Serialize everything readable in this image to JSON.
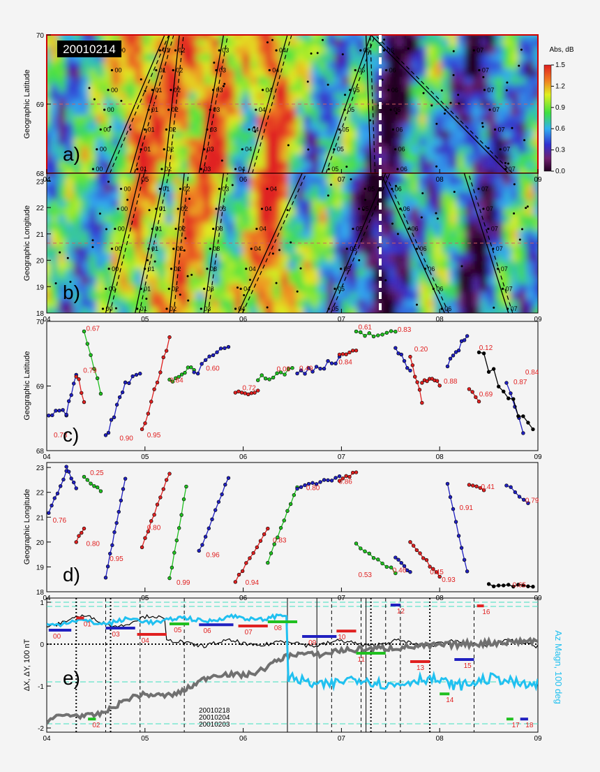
{
  "figure": {
    "date_label": "20010214",
    "colorbar_title": "Abs, dB",
    "colorbar_ticks": [
      "1.5",
      "1.2",
      "0.9",
      "0.6",
      "0.3",
      "0.0"
    ],
    "legend_dates": [
      "20010218",
      "20010204",
      "20010203"
    ],
    "right_axis_label": "Az Magn, 100 deg",
    "colors": {
      "red": "#e02020",
      "blue": "#2020c0",
      "green": "#20c020",
      "cyan": "#20c0f0",
      "gray": "#707070",
      "dashcyan": "#40e0c0"
    }
  },
  "panels": {
    "a": {
      "letter": "a)",
      "ylabel": "Geographic Latitude",
      "yticks": [
        "70",
        "69",
        "68"
      ]
    },
    "b": {
      "letter": "b)",
      "ylabel": "Geographic Longitude",
      "yticks": [
        "23",
        "22",
        "21",
        "20",
        "19",
        "18"
      ]
    },
    "c": {
      "letter": "c)",
      "ylabel": "Geographic Latitude",
      "yticks": [
        "70",
        "69",
        "68"
      ]
    },
    "d": {
      "letter": "d)",
      "ylabel": "Geographic Longitude",
      "yticks": [
        "23",
        "22",
        "21",
        "20",
        "19",
        "18"
      ]
    },
    "e": {
      "letter": "e)",
      "ylabel": "ΔX, ΔY, 100 nT",
      "yticks": [
        "1",
        "0",
        "-1",
        "-2"
      ]
    }
  },
  "chart_data": [
    {
      "type": "heatmap",
      "panel": "a",
      "title": "20010214",
      "xlabel": "",
      "ylabel": "Geographic Latitude",
      "xlim": [
        4,
        9
      ],
      "ylim": [
        68,
        70
      ],
      "xticks": [
        "04",
        "05",
        "06",
        "07",
        "08",
        "09"
      ],
      "value_range": [
        0.0,
        1.5
      ],
      "unit": "Abs, dB",
      "beam_labels": [
        "00",
        "01",
        "02",
        "03",
        "04",
        "05",
        "06",
        "07"
      ]
    },
    {
      "type": "heatmap",
      "panel": "b",
      "xlabel": "",
      "ylabel": "Geographic Longitude",
      "xlim": [
        4,
        9
      ],
      "ylim": [
        18,
        23.3
      ],
      "xticks": [
        "04",
        "05",
        "06",
        "07",
        "08",
        "09"
      ],
      "value_range": [
        0.0,
        1.5
      ],
      "unit": "Abs, dB"
    },
    {
      "type": "scatter",
      "panel": "c",
      "ylabel": "Geographic Latitude",
      "xlim": [
        4,
        9
      ],
      "ylim": [
        68,
        70
      ],
      "xticks": [
        "04",
        "05",
        "06",
        "07",
        "08",
        "09"
      ],
      "annotations": [
        {
          "x": 4.05,
          "y": 68.25,
          "text": "0.73"
        },
        {
          "x": 4.35,
          "y": 69.25,
          "text": "0.79"
        },
        {
          "x": 4.38,
          "y": 69.9,
          "text": "0.67"
        },
        {
          "x": 4.72,
          "y": 68.2,
          "text": "0.90"
        },
        {
          "x": 5.0,
          "y": 68.25,
          "text": "0.95"
        },
        {
          "x": 5.23,
          "y": 69.1,
          "text": "0.84"
        },
        {
          "x": 5.6,
          "y": 69.28,
          "text": "0.60"
        },
        {
          "x": 5.97,
          "y": 68.98,
          "text": "0.72"
        },
        {
          "x": 6.32,
          "y": 69.27,
          "text": "0.08"
        },
        {
          "x": 6.55,
          "y": 69.28,
          "text": "0.49"
        },
        {
          "x": 6.95,
          "y": 69.38,
          "text": "0.84"
        },
        {
          "x": 7.15,
          "y": 69.92,
          "text": "0.61"
        },
        {
          "x": 7.55,
          "y": 69.88,
          "text": "0.83"
        },
        {
          "x": 7.72,
          "y": 69.58,
          "text": "0.20"
        },
        {
          "x": 8.02,
          "y": 69.08,
          "text": "0.88"
        },
        {
          "x": 8.38,
          "y": 69.6,
          "text": "0.12"
        },
        {
          "x": 8.38,
          "y": 68.88,
          "text": "0.69"
        },
        {
          "x": 8.73,
          "y": 69.07,
          "text": "0.87"
        },
        {
          "x": 8.85,
          "y": 69.22,
          "text": "0.84"
        }
      ]
    },
    {
      "type": "scatter",
      "panel": "d",
      "ylabel": "Geographic Longitude",
      "xlim": [
        4,
        9
      ],
      "ylim": [
        18,
        23.2
      ],
      "xticks": [
        "04",
        "05",
        "06",
        "07",
        "08",
        "09"
      ],
      "annotations": [
        {
          "x": 4.04,
          "y": 20.9,
          "text": "0.76"
        },
        {
          "x": 4.38,
          "y": 19.95,
          "text": "0.80"
        },
        {
          "x": 4.42,
          "y": 22.8,
          "text": "0.25"
        },
        {
          "x": 4.62,
          "y": 19.35,
          "text": "0.95"
        },
        {
          "x": 5.0,
          "y": 20.6,
          "text": "0.80"
        },
        {
          "x": 5.3,
          "y": 18.4,
          "text": "0.99"
        },
        {
          "x": 5.6,
          "y": 19.5,
          "text": "0.96"
        },
        {
          "x": 6.0,
          "y": 18.4,
          "text": "0.94"
        },
        {
          "x": 6.28,
          "y": 20.1,
          "text": "0.83"
        },
        {
          "x": 6.62,
          "y": 22.2,
          "text": "0.80"
        },
        {
          "x": 6.95,
          "y": 22.45,
          "text": "0.86"
        },
        {
          "x": 7.15,
          "y": 18.7,
          "text": "0.53"
        },
        {
          "x": 7.5,
          "y": 18.88,
          "text": "0.46"
        },
        {
          "x": 7.88,
          "y": 18.82,
          "text": "0.45"
        },
        {
          "x": 8.0,
          "y": 18.5,
          "text": "0.93"
        },
        {
          "x": 8.18,
          "y": 21.4,
          "text": "0.91"
        },
        {
          "x": 8.4,
          "y": 22.25,
          "text": "0.41"
        },
        {
          "x": 8.85,
          "y": 21.7,
          "text": "0.79"
        },
        {
          "x": 8.72,
          "y": 18.3,
          "text": "0.65"
        }
      ]
    },
    {
      "type": "line",
      "panel": "e",
      "ylabel": "ΔX, ΔY, 100 nT",
      "y2label": "Az Magn, 100 deg",
      "xlim": [
        4,
        9
      ],
      "ylim": [
        -2.1,
        1.1
      ],
      "xticks": [
        "04",
        "05",
        "06",
        "07",
        "08",
        "09"
      ],
      "series": [
        {
          "name": "20010218"
        },
        {
          "name": "20010204"
        },
        {
          "name": "20010203"
        }
      ],
      "segment_labels": [
        {
          "x": 4.05,
          "y": 0.2,
          "text": "00"
        },
        {
          "x": 4.36,
          "y": 0.49,
          "text": "01"
        },
        {
          "x": 4.45,
          "y": -1.92,
          "text": "02"
        },
        {
          "x": 4.65,
          "y": 0.25,
          "text": "03"
        },
        {
          "x": 4.95,
          "y": 0.1,
          "text": "04"
        },
        {
          "x": 5.28,
          "y": 0.35,
          "text": "05"
        },
        {
          "x": 5.58,
          "y": 0.33,
          "text": "06"
        },
        {
          "x": 6.0,
          "y": 0.3,
          "text": "07"
        },
        {
          "x": 6.3,
          "y": 0.4,
          "text": "08"
        },
        {
          "x": 6.65,
          "y": 0.05,
          "text": "09"
        },
        {
          "x": 6.95,
          "y": 0.18,
          "text": "10"
        },
        {
          "x": 7.15,
          "y": -0.35,
          "text": "11"
        },
        {
          "x": 7.55,
          "y": 0.8,
          "text": "12"
        },
        {
          "x": 7.75,
          "y": -0.55,
          "text": "13"
        },
        {
          "x": 8.05,
          "y": -1.32,
          "text": "14"
        },
        {
          "x": 8.23,
          "y": -0.5,
          "text": "15"
        },
        {
          "x": 8.42,
          "y": 0.78,
          "text": "16"
        },
        {
          "x": 8.72,
          "y": -1.92,
          "text": "17"
        },
        {
          "x": 8.86,
          "y": -1.92,
          "text": "18"
        }
      ]
    }
  ]
}
